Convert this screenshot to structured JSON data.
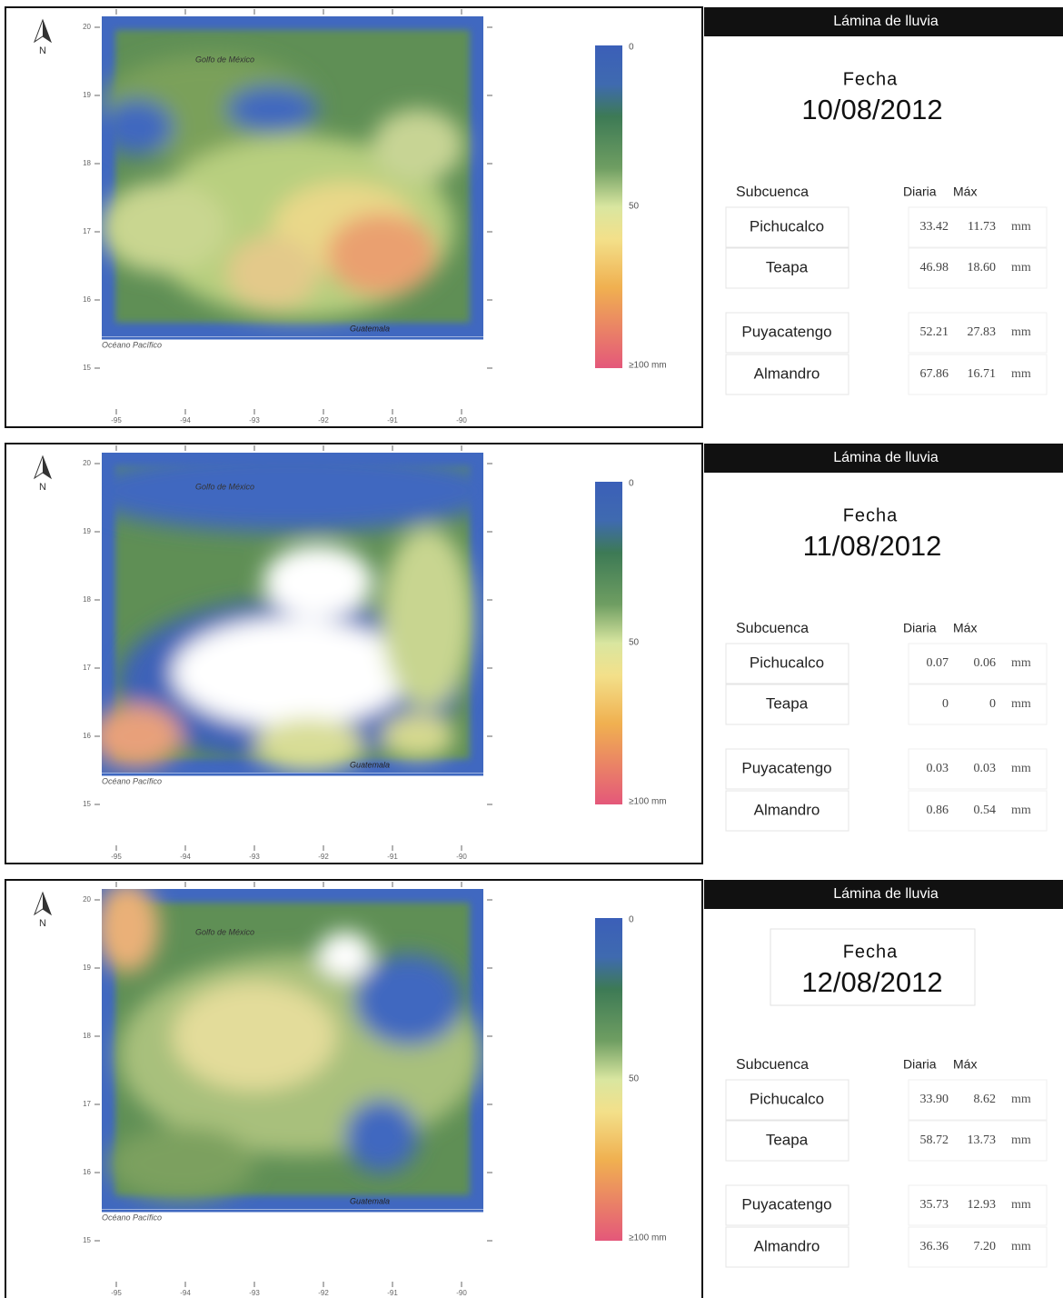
{
  "panels": [
    {
      "map": {
        "north": "N",
        "yticks": [
          "20",
          "19",
          "18",
          "17",
          "16",
          "15"
        ],
        "xticks": [
          "-95",
          "-94",
          "-93",
          "-92",
          "-91",
          "-90"
        ],
        "labels": [
          "Golfo de México",
          "Océano Pacífico",
          "Guatemala"
        ],
        "colorbar": [
          "0",
          "50",
          "≥100 mm"
        ]
      },
      "header": "Lámina de lluvia",
      "fecha_label": "Fecha",
      "fecha": "10/08/2012",
      "columns": [
        "Subcuenca",
        "Diaria",
        "Máx"
      ],
      "rows": [
        [
          "Pichucalco",
          "33.42",
          "11.73",
          "mm"
        ],
        [
          "Teapa",
          "46.98",
          "18.60",
          "mm"
        ],
        [
          "Puyacatengo",
          "52.21",
          "27.83",
          "mm"
        ],
        [
          "Almandro",
          "67.86",
          "16.71",
          "mm"
        ]
      ]
    },
    {
      "map": {
        "north": "N",
        "yticks": [
          "20",
          "19",
          "18",
          "17",
          "16",
          "15"
        ],
        "xticks": [
          "-95",
          "-94",
          "-93",
          "-92",
          "-91",
          "-90"
        ],
        "labels": [
          "Golfo de México",
          "Océano Pacífico",
          "Guatemala"
        ],
        "colorbar": [
          "0",
          "50",
          "≥100 mm"
        ]
      },
      "header": "Lámina de lluvia",
      "fecha_label": "Fecha",
      "fecha": "11/08/2012",
      "columns": [
        "Subcuenca",
        "Diaria",
        "Máx"
      ],
      "rows": [
        [
          "Pichucalco",
          "0.07",
          "0.06",
          "mm"
        ],
        [
          "Teapa",
          "0",
          "0",
          "mm"
        ],
        [
          "Puyacatengo",
          "0.03",
          "0.03",
          "mm"
        ],
        [
          "Almandro",
          "0.86",
          "0.54",
          "mm"
        ]
      ]
    },
    {
      "map": {
        "north": "N",
        "yticks": [
          "20",
          "19",
          "18",
          "17",
          "16",
          "15"
        ],
        "xticks": [
          "-95",
          "-94",
          "-93",
          "-92",
          "-91",
          "-90"
        ],
        "labels": [
          "Golfo de México",
          "Océano Pacífico",
          "Guatemala"
        ],
        "colorbar": [
          "0",
          "50",
          "≥100 mm"
        ]
      },
      "header": "Lámina de lluvia",
      "fecha_label": "Fecha",
      "fecha": "12/08/2012",
      "columns": [
        "Subcuenca",
        "Diaria",
        "Máx"
      ],
      "rows": [
        [
          "Pichucalco",
          "33.90",
          "8.62",
          "mm"
        ],
        [
          "Teapa",
          "58.72",
          "13.73",
          "mm"
        ],
        [
          "Puyacatengo",
          "35.73",
          "12.93",
          "mm"
        ],
        [
          "Almandro",
          "36.36",
          "7.20",
          "mm"
        ]
      ]
    }
  ]
}
